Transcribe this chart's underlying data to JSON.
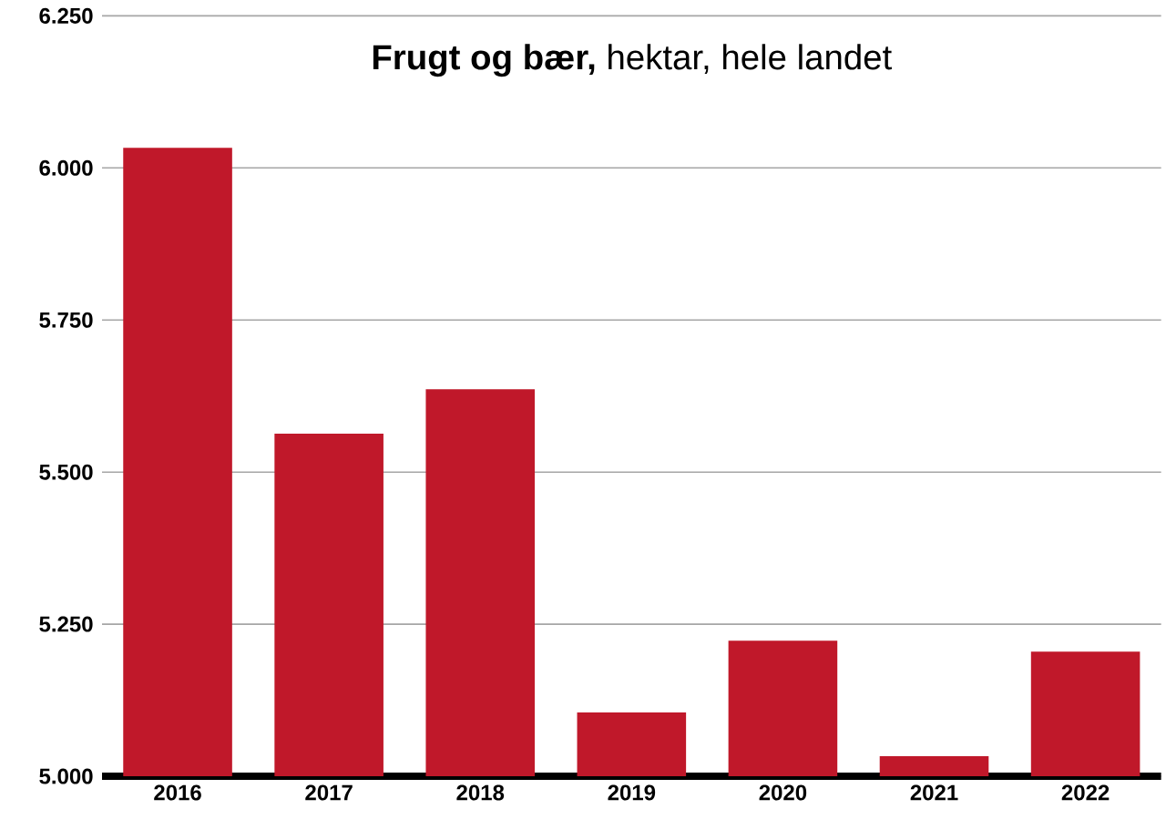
{
  "chart_data": {
    "type": "bar",
    "title": "**Frugt og bær,** hektar, hele landet",
    "categories": [
      "2016",
      "2017",
      "2018",
      "2019",
      "2020",
      "2021",
      "2022"
    ],
    "values": [
      6033,
      5563,
      5636,
      5105,
      5223,
      5033,
      5205
    ],
    "color": "#c0182a",
    "ylim": [
      5000,
      6250
    ],
    "yticks": [
      {
        "value": 5000,
        "label": "5.000"
      },
      {
        "value": 5250,
        "label": "5.250"
      },
      {
        "value": 5500,
        "label": "5.500"
      },
      {
        "value": 5750,
        "label": "5.750"
      },
      {
        "value": 6000,
        "label": "6.000"
      },
      {
        "value": 6250,
        "label": "6.250"
      }
    ],
    "grid": "y"
  }
}
